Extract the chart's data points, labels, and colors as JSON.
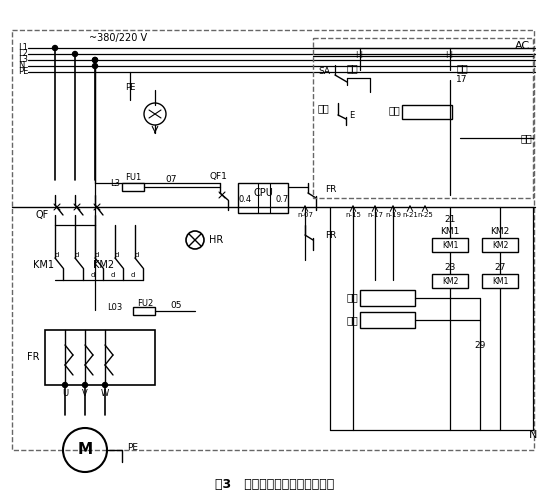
{
  "title": "图3   慢转电机的改造控制原理图",
  "bg_color": "#ffffff",
  "lc": "#000000",
  "dc": "#666666",
  "fig_width": 5.5,
  "fig_height": 4.96,
  "dpi": 100,
  "voltage_label": "~380/220 V",
  "power_labels": [
    "L1",
    "L2",
    "L3",
    "N",
    "PE"
  ],
  "ac_label": "AC",
  "n_labels": [
    "n-07",
    "n-15",
    "n-17",
    "n-19",
    "n-21",
    "n-25"
  ]
}
